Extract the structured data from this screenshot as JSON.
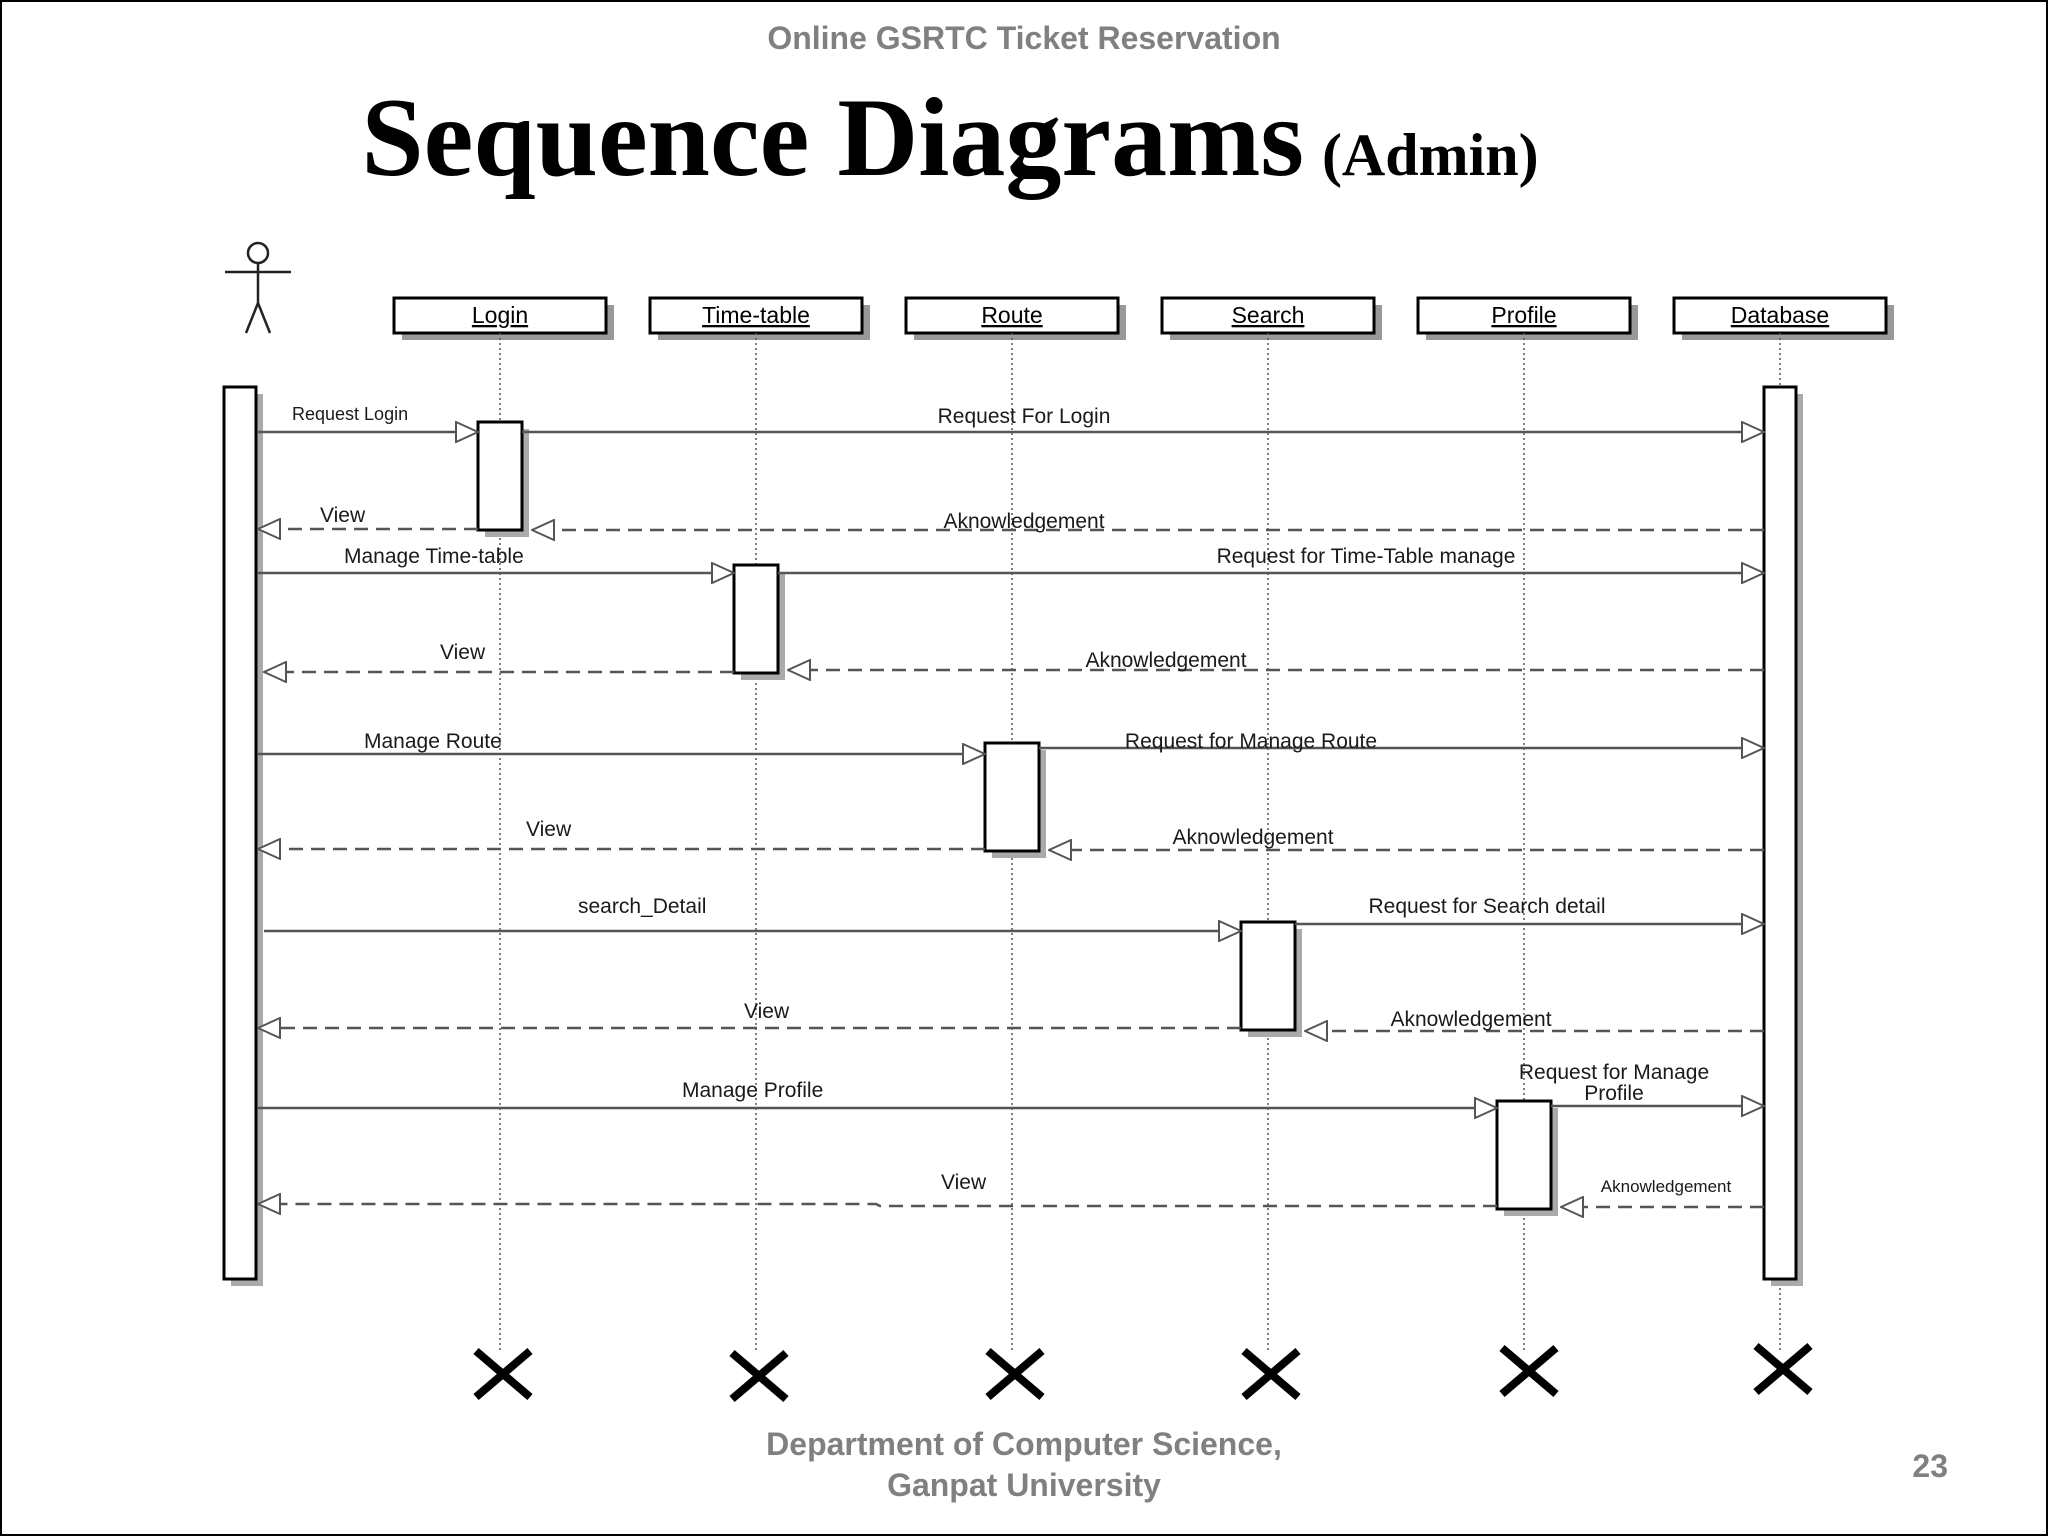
{
  "header": {
    "text": "Online GSRTC Ticket Reservation"
  },
  "title": {
    "main": "Sequence Diagrams",
    "sub": "(Admin)"
  },
  "footer": {
    "line1": "Department of Computer Science,",
    "line2": "Ganpat University",
    "page_number": "23"
  },
  "diagram": {
    "objects": [
      {
        "id": "login",
        "label": "Login"
      },
      {
        "id": "timetable",
        "label": "Time-table"
      },
      {
        "id": "route",
        "label": "Route"
      },
      {
        "id": "search",
        "label": "Search"
      },
      {
        "id": "profile",
        "label": "Profile"
      },
      {
        "id": "database",
        "label": "Database"
      }
    ],
    "messages": [
      {
        "label": "Request Login"
      },
      {
        "label": "Request For Login"
      },
      {
        "label": "View"
      },
      {
        "label": "Aknowledgement"
      },
      {
        "label": "Manage Time-table"
      },
      {
        "label": "Request for Time-Table manage"
      },
      {
        "label": "View"
      },
      {
        "label": "Aknowledgement"
      },
      {
        "label": "Manage Route"
      },
      {
        "label": "Request for Manage Route"
      },
      {
        "label": "View"
      },
      {
        "label": "Aknowledgement"
      },
      {
        "label": "search_Detail"
      },
      {
        "label": "Request for Search detail"
      },
      {
        "label": "View"
      },
      {
        "label": "Aknowledgement"
      },
      {
        "label": "Manage Profile"
      },
      {
        "label": "Request for Manage Profile"
      },
      {
        "label": "View"
      },
      {
        "label": "Aknowledgement"
      }
    ]
  }
}
